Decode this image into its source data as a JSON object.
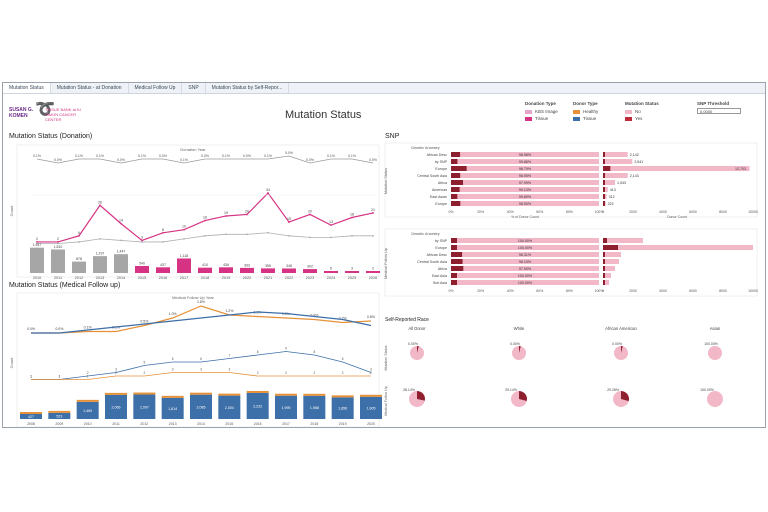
{
  "tabs": [
    "Mutation Status",
    "Mutation Status - at Donation",
    "Medical Follow Up",
    "SNP",
    "Mutation Status by Self-Repor..."
  ],
  "logo": {
    "line1": "SUSAN G. KOMEN",
    "line2": "TISSUE BANK at IU SIMON CANCER CENTER"
  },
  "title": "Mutation Status",
  "filters": {
    "donation_type": {
      "title": "Donation Type",
      "options": [
        {
          "label": "KBS Image",
          "color": "#e7a6c9"
        },
        {
          "label": "Tissue",
          "color": "#d63384"
        }
      ]
    },
    "donor_type": {
      "title": "Donor Type",
      "options": [
        {
          "label": "Healthy",
          "color": "#e69138"
        },
        {
          "label": "Tissue",
          "color": "#3d6fa8"
        }
      ]
    },
    "mutation_status": {
      "title": "Mutation Status",
      "options": [
        {
          "label": "No",
          "color": "#f2b8c8"
        },
        {
          "label": "Yes",
          "color": "#c0283c"
        }
      ]
    },
    "snp_threshold": {
      "title": "SNP Threshold",
      "value": "0.0000"
    }
  },
  "sections": {
    "donation": "Mutation Status (Donation)",
    "medical": "Mutation Status (Medical Follow up)",
    "snp": "SNP",
    "self": "Self-Reported Race"
  },
  "donation_chart": {
    "header": "Donation Year",
    "years": [
      "2010",
      "2011",
      "2012",
      "2013",
      "2014",
      "2015",
      "2016",
      "2017",
      "2018",
      "2019",
      "2020",
      "2021",
      "2022",
      "2023",
      "2024",
      "2025",
      "2026"
    ],
    "pct_labels": [
      "0.1%",
      "0.0%",
      "0.1%",
      "0.1%",
      "0.0%",
      "0.1%",
      "0.0%",
      "0.1%",
      "0.0%",
      "0.1%",
      "0.0%",
      "0.1%",
      "0.0%",
      "0.0%",
      "0.1%",
      "0.1%",
      "0.0%"
    ],
    "counts": [
      "1,947",
      "1,810",
      "878",
      "1,297",
      "1,447",
      "540",
      "437",
      "1,118",
      "410",
      "436",
      "393",
      "355",
      "348",
      "302",
      "5",
      "3",
      "2"
    ]
  },
  "medical_chart": {
    "header": "Medical Follow Up Year",
    "pct_labels": [
      "0.0%",
      "0.0%",
      "0.1%",
      "0.1%",
      "0.5%",
      "1.0%",
      "1.8%",
      "1.2%",
      "1.1%",
      "1.0%",
      "0.9%",
      "0.7%",
      "0.8%"
    ],
    "bars": [
      "427",
      "523",
      "1,469",
      "2,066",
      "2,097",
      "1,814",
      "2,085",
      "2,004",
      "2,232",
      "1,995",
      "1,988",
      "1,856",
      "1,905"
    ]
  },
  "snp": {
    "panel1_title": "Genetic Ancestry",
    "panel1_rows": [
      "African Desc",
      "by SNP",
      "Europe",
      "Central South Asia",
      "Africa",
      "Americas",
      "East Asian",
      "Europe"
    ],
    "panel1_pct": [
      "98.98%",
      "99.86%",
      "96.79%",
      "98.95%",
      "97.99%",
      "99.13%",
      "99.89%",
      "98.90%"
    ],
    "panel1_counts": [
      "2,142",
      "2,541",
      "12,703",
      "2,143",
      "1,043",
      "413",
      "312",
      "223"
    ],
    "panel2_title": "Genetic Ancestry",
    "panel2_rows": [
      "by SNP",
      "Europe",
      "African Desc",
      "Central South Asia",
      "Africa",
      "East Asia",
      "Sub Asia"
    ],
    "panel2_pct": [
      "100.00%",
      "100.00%",
      "98.31%",
      "98.15%",
      "97.90%",
      "100.00%",
      "100.00%"
    ],
    "x_ticks": [
      "0%",
      "20%",
      "40%",
      "60%",
      "80%",
      "100%"
    ],
    "count_ticks": [
      "0",
      "2000",
      "4000",
      "6000",
      "8000",
      "10000"
    ],
    "x_title": "% of Donor Count",
    "count_title": "Donor Count",
    "row_group1": "Mutation Status",
    "row_group2": "Medical Follow Up"
  },
  "race": {
    "groups": [
      "All Donor",
      "White",
      "African American",
      "Asian"
    ],
    "row1_labels": [
      "0.00%",
      "0.00%",
      "0.00%",
      "100.00%"
    ],
    "row2_labels": [
      "28.14%",
      "29.14%",
      "29.28%",
      "100.00%"
    ],
    "row_title1": "Mutation Status",
    "row_title2": "Medical Follow Up"
  },
  "chart_data": [
    {
      "type": "line",
      "title": "Mutation Status (Donation)",
      "x": [
        "2010",
        "2011",
        "2012",
        "2013",
        "2014",
        "2015",
        "2016",
        "2017",
        "2018",
        "2019",
        "2020",
        "2021",
        "2022",
        "2023",
        "2024",
        "2025",
        "2026"
      ],
      "series": [
        {
          "name": "Tissue",
          "values": [
            2,
            2,
            6,
            26,
            14,
            3,
            8,
            10,
            16,
            19,
            20,
            34,
            15,
            20,
            13,
            18,
            21
          ]
        },
        {
          "name": "KBS Image",
          "values": [
            1,
            1,
            2,
            4,
            3,
            2,
            2,
            4,
            6,
            7,
            7,
            8,
            6,
            5,
            5,
            6,
            6
          ]
        }
      ],
      "bar_values": [
        1947,
        1810,
        878,
        1297,
        1447,
        540,
        437,
        1118,
        410,
        436,
        393,
        355,
        348,
        302,
        5,
        3,
        2
      ]
    },
    {
      "type": "line",
      "title": "Mutation Status (Medical Follow up)",
      "x": [
        "2008",
        "2009",
        "2010",
        "2011",
        "2012",
        "2013",
        "2014",
        "2015",
        "2016",
        "2017",
        "2018",
        "2019",
        "2020"
      ],
      "series": [
        {
          "name": "Healthy",
          "values": [
            0.0,
            0.0,
            0.1,
            0.1,
            0.5,
            1.0,
            1.8,
            1.2,
            1.1,
            1.0,
            0.9,
            0.7,
            0.8
          ]
        },
        {
          "name": "Tissue",
          "values": [
            0.0,
            0.0,
            0.2,
            0.4,
            0.6,
            0.8,
            1.0,
            1.2,
            1.4,
            1.3,
            1.1,
            0.9,
            0.5
          ]
        }
      ],
      "bar_values": [
        427,
        523,
        1469,
        2066,
        2097,
        1814,
        2085,
        2004,
        2232,
        1995,
        1988,
        1856,
        1905
      ]
    },
    {
      "type": "bar",
      "title": "SNP",
      "categories": [
        "African Desc",
        "by SNP",
        "Europe",
        "Central South Asia",
        "Africa",
        "Americas",
        "East Asian",
        "Europe"
      ],
      "values": [
        98.98,
        99.86,
        96.79,
        98.95,
        97.99,
        99.13,
        99.89,
        98.9
      ]
    },
    {
      "type": "pie",
      "title": "Self-Reported Race",
      "categories": [
        "All Donor",
        "White",
        "African American",
        "Asian"
      ],
      "values": [
        28.14,
        29.14,
        29.28,
        100.0
      ]
    }
  ]
}
